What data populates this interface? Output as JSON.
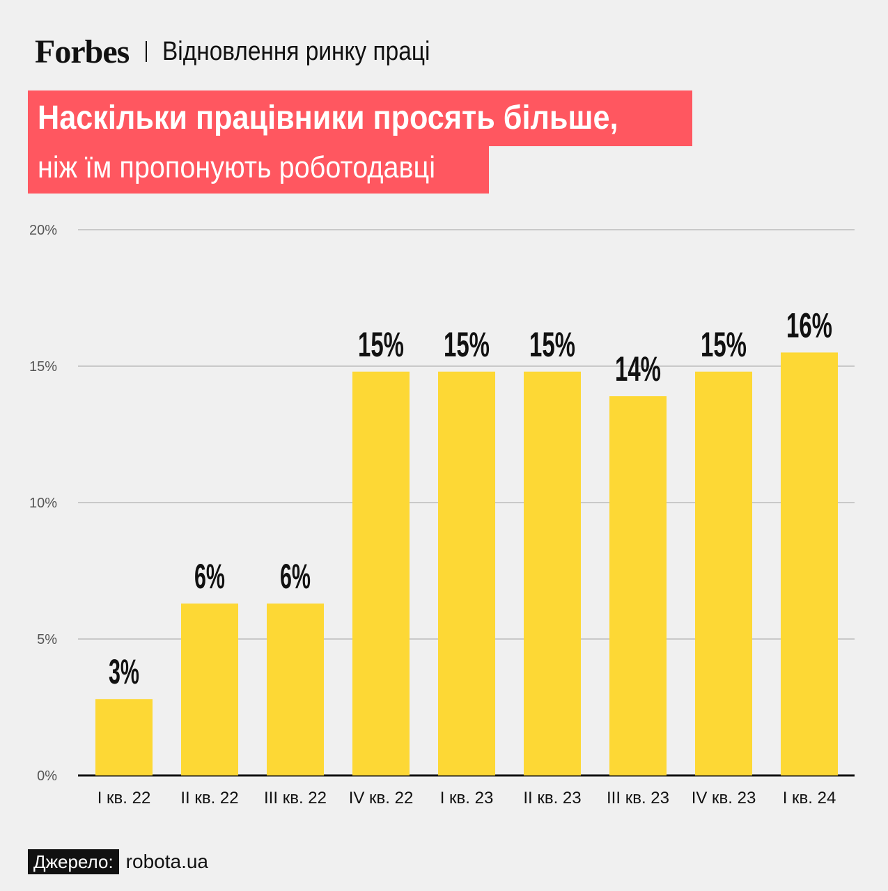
{
  "header": {
    "logo": "Forbes",
    "section": "Відновлення ринку праці"
  },
  "title": {
    "line1": "Наскільки працівники просять більше,",
    "line2": "ніж їм пропонують роботодавці"
  },
  "colors": {
    "bar": "#fdd835",
    "title_bg": "#ff5760",
    "grid": "#bcbcbc",
    "axis": "#111111"
  },
  "chart_data": {
    "type": "bar",
    "categories": [
      "I кв. 22",
      "II кв. 22",
      "III кв. 22",
      "IV кв. 22",
      "I кв. 23",
      "II кв. 23",
      "III кв. 23",
      "IV кв. 23",
      "I кв. 24"
    ],
    "values": [
      2.8,
      6.3,
      6.3,
      14.8,
      14.8,
      14.8,
      13.9,
      14.8,
      15.5
    ],
    "data_labels": [
      "3%",
      "6%",
      "6%",
      "15%",
      "15%",
      "15%",
      "14%",
      "15%",
      "16%"
    ],
    "yticks": [
      0,
      5,
      10,
      15,
      20
    ],
    "ytick_labels": [
      "0%",
      "5%",
      "10%",
      "15%",
      "20%"
    ],
    "ylim": [
      0,
      20
    ],
    "grid": true
  },
  "footer": {
    "source_label": "Джерело:",
    "source_value": "robota.ua"
  }
}
